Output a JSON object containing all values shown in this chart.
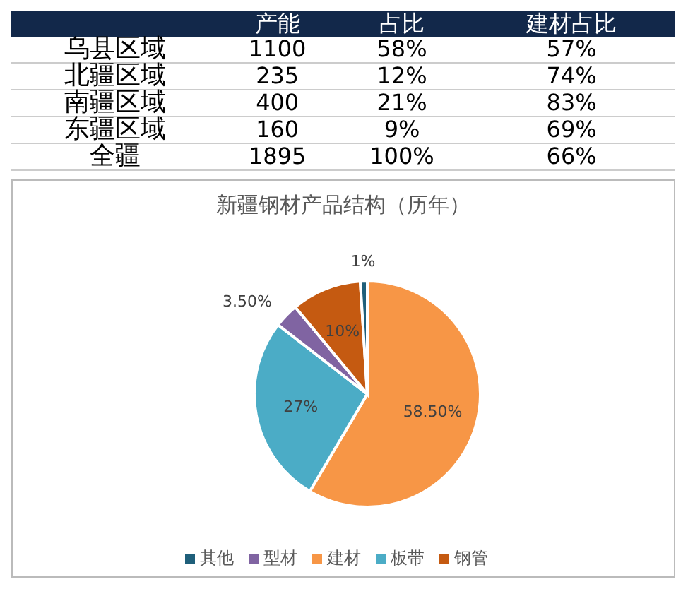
{
  "chart_data": [
    {
      "type": "other",
      "categories": [
        "产能",
        "占比",
        "建材占比"
      ],
      "y_categories": [
        "乌县区域",
        "北疆区域",
        "南疆区域",
        "东疆区域",
        "全疆"
      ],
      "cell_labels": [
        [
          "1100",
          "58%",
          "57%"
        ],
        [
          "235",
          "12%",
          "74%"
        ],
        [
          "400",
          "21%",
          "83%"
        ],
        [
          "160",
          "9%",
          "69%"
        ],
        [
          "1895",
          "100%",
          "66%"
        ]
      ]
    },
    {
      "type": "pie",
      "title": "新疆钢材产品结构（历年）",
      "categories": [
        "建材",
        "板带",
        "型材",
        "钢管",
        "其他"
      ],
      "values": [
        58.5,
        27,
        3.5,
        10,
        1
      ],
      "colors": [
        "#f79646",
        "#4bacc6",
        "#8064a2",
        "#c55a11",
        "#1f5f7a"
      ],
      "value_labels": [
        "58.50%",
        "27%",
        "3.50%",
        "10%",
        "1%"
      ],
      "legend": "bottom"
    }
  ]
}
